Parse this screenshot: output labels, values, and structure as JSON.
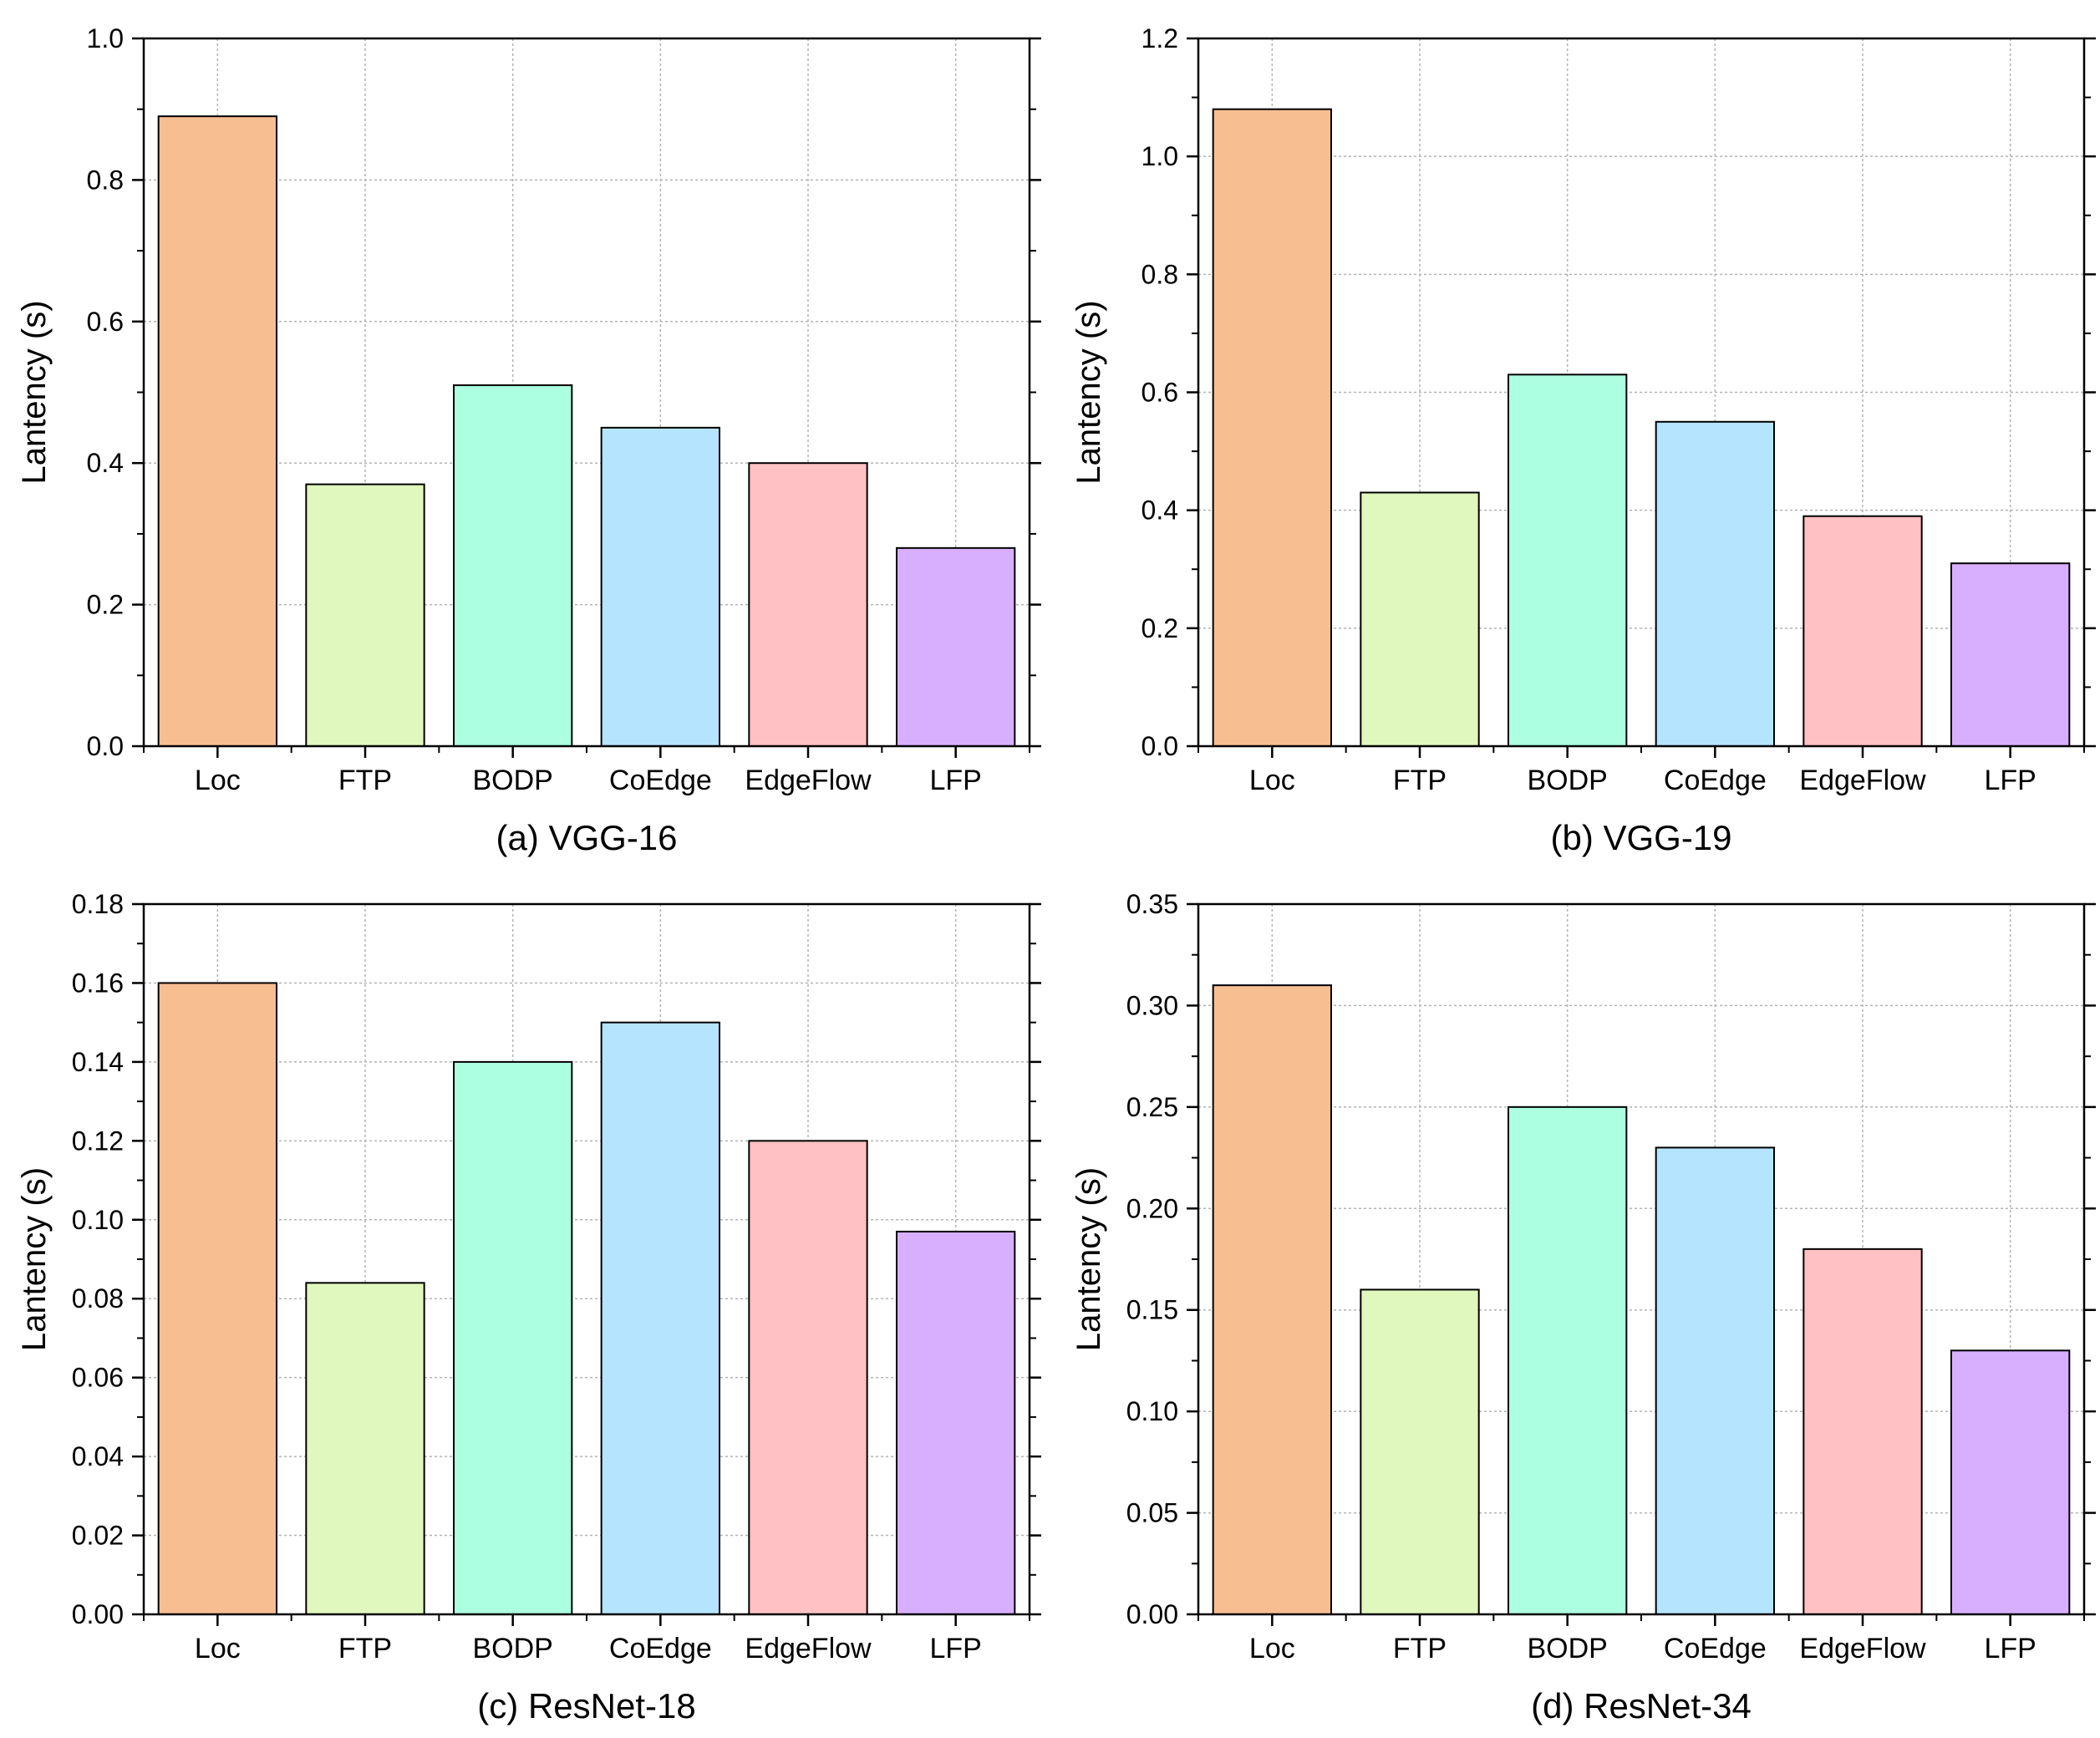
{
  "chart_data": [
    {
      "type": "bar",
      "title": "(a) VGG-16",
      "ylabel": "Lantency (s)",
      "xlabel": "",
      "grid": true,
      "categories": [
        "Loc",
        "FTP",
        "BODP",
        "CoEdge",
        "EdgeFlow",
        "LFP"
      ],
      "values": [
        0.89,
        0.37,
        0.51,
        0.45,
        0.4,
        0.28
      ],
      "ylim": [
        0,
        1.0
      ],
      "yticks": [
        0.0,
        0.2,
        0.4,
        0.6,
        0.8,
        1.0
      ],
      "ytick_labels": [
        "0.0",
        "0.2",
        "0.4",
        "0.6",
        "0.8",
        "1.0"
      ]
    },
    {
      "type": "bar",
      "title": "(b) VGG-19",
      "ylabel": "Lantency (s)",
      "xlabel": "",
      "grid": true,
      "categories": [
        "Loc",
        "FTP",
        "BODP",
        "CoEdge",
        "EdgeFlow",
        "LFP"
      ],
      "values": [
        1.08,
        0.43,
        0.63,
        0.55,
        0.39,
        0.31
      ],
      "ylim": [
        0,
        1.2
      ],
      "yticks": [
        0.0,
        0.2,
        0.4,
        0.6,
        0.8,
        1.0,
        1.2
      ],
      "ytick_labels": [
        "0.0",
        "0.2",
        "0.4",
        "0.6",
        "0.8",
        "1.0",
        "1.2"
      ]
    },
    {
      "type": "bar",
      "title": "(c) ResNet-18",
      "ylabel": "Lantency (s)",
      "xlabel": "",
      "grid": true,
      "categories": [
        "Loc",
        "FTP",
        "BODP",
        "CoEdge",
        "EdgeFlow",
        "LFP"
      ],
      "values": [
        0.16,
        0.084,
        0.14,
        0.15,
        0.12,
        0.097
      ],
      "ylim": [
        0,
        0.18
      ],
      "yticks": [
        0.0,
        0.02,
        0.04,
        0.06,
        0.08,
        0.1,
        0.12,
        0.14,
        0.16,
        0.18
      ],
      "ytick_labels": [
        "0.00",
        "0.02",
        "0.04",
        "0.06",
        "0.08",
        "0.10",
        "0.12",
        "0.14",
        "0.16",
        "0.18"
      ]
    },
    {
      "type": "bar",
      "title": "(d) ResNet-34",
      "ylabel": "Lantency (s)",
      "xlabel": "",
      "grid": true,
      "categories": [
        "Loc",
        "FTP",
        "BODP",
        "CoEdge",
        "EdgeFlow",
        "LFP"
      ],
      "values": [
        0.31,
        0.16,
        0.25,
        0.23,
        0.18,
        0.13
      ],
      "ylim": [
        0,
        0.35
      ],
      "yticks": [
        0.0,
        0.05,
        0.1,
        0.15,
        0.2,
        0.25,
        0.3,
        0.35
      ],
      "ytick_labels": [
        "0.00",
        "0.05",
        "0.10",
        "0.15",
        "0.20",
        "0.25",
        "0.30",
        "0.35"
      ]
    }
  ],
  "colors": {
    "bars": [
      "#f7be92",
      "#e0f7bd",
      "#adffe2",
      "#b5e4ff",
      "#ffc1c4",
      "#d8afff"
    ],
    "bar_stroke": "#000000",
    "grid": "#b3b3b3",
    "axis": "#000000"
  }
}
